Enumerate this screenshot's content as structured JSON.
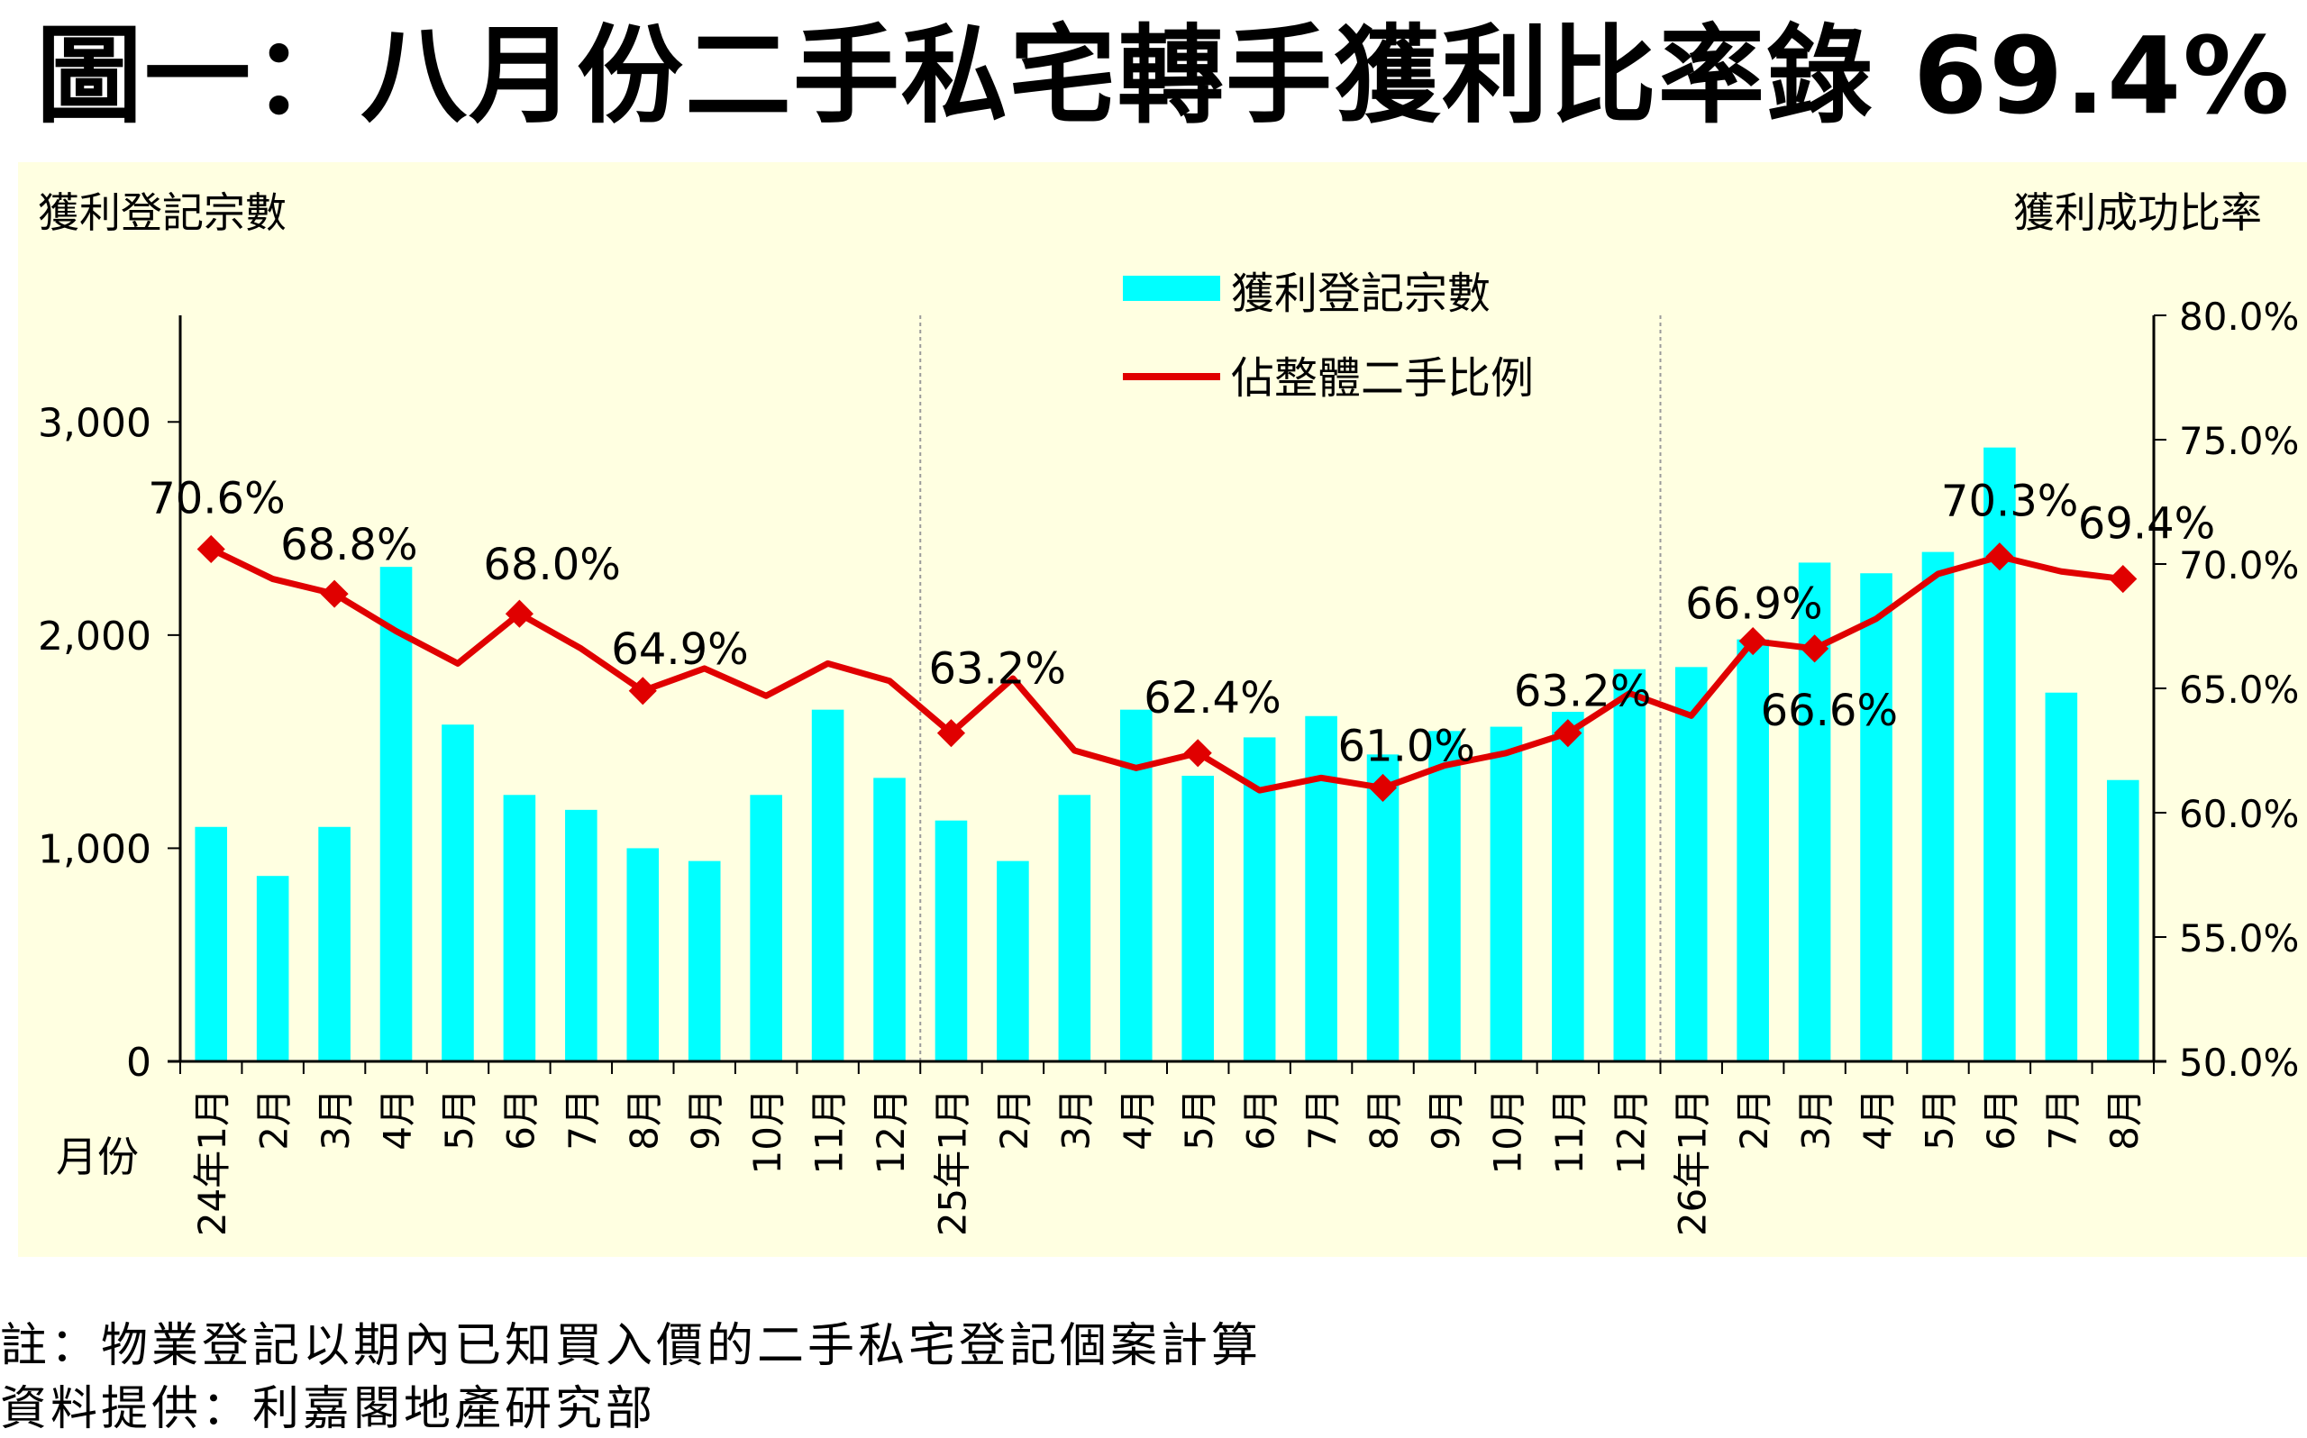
{
  "title": "圖一：八月份二手私宅轉手獲利比率錄 69.4%",
  "notes": {
    "line1": "註：物業登記以期內已知買入價的二手私宅登記個案計算",
    "line2": "資料提供：利嘉閣地產研究部"
  },
  "colors": {
    "bars": "#00ffff",
    "line": "#e00000",
    "panel": "#ffffe1"
  },
  "chart_data": {
    "type": "bar",
    "title": "圖一：八月份二手私宅轉手獲利比率錄 69.4%",
    "xlabel": "月份",
    "ylabel": "獲利登記宗數",
    "y2label": "獲利成功比率",
    "ylim": [
      0,
      3500
    ],
    "y2lim": [
      50.0,
      80.0
    ],
    "yticks": [
      "0",
      "1,000",
      "2,000",
      "3,000"
    ],
    "yticks_values": [
      0,
      1000,
      2000,
      3000
    ],
    "y2ticks": [
      "50.0%",
      "55.0%",
      "60.0%",
      "65.0%",
      "70.0%",
      "75.0%",
      "80.0%"
    ],
    "y2ticks_values": [
      50,
      55,
      60,
      65,
      70,
      75,
      80
    ],
    "categories": [
      "24年1月",
      "2月",
      "3月",
      "4月",
      "5月",
      "6月",
      "7月",
      "8月",
      "9月",
      "10月",
      "11月",
      "12月",
      "25年1月",
      "2月",
      "3月",
      "4月",
      "5月",
      "6月",
      "7月",
      "8月",
      "9月",
      "10月",
      "11月",
      "12月",
      "26年1月",
      "2月",
      "3月",
      "4月",
      "5月",
      "6月",
      "7月",
      "8月"
    ],
    "year_breaks": [
      12,
      24
    ],
    "grid": false,
    "legend": "top-center",
    "series": [
      {
        "name": "獲利登記宗數",
        "axis": "left",
        "type": "bar",
        "values": [
          1100,
          870,
          1100,
          2320,
          1580,
          1250,
          1180,
          1000,
          940,
          1250,
          1650,
          1330,
          1130,
          940,
          1250,
          1650,
          1340,
          1520,
          1620,
          1440,
          1550,
          1570,
          1640,
          1840,
          1850,
          1980,
          2340,
          2290,
          2390,
          2880,
          1730,
          1320
        ]
      },
      {
        "name": "佔整體二手比例",
        "axis": "right",
        "type": "line",
        "values": [
          70.6,
          69.4,
          68.8,
          67.3,
          66.0,
          68.0,
          66.6,
          64.9,
          65.8,
          64.7,
          66.0,
          65.3,
          63.2,
          65.4,
          62.5,
          61.8,
          62.4,
          60.9,
          61.4,
          61.0,
          61.9,
          62.4,
          63.2,
          64.8,
          63.9,
          66.9,
          66.6,
          67.8,
          69.6,
          70.3,
          69.7,
          69.4
        ]
      }
    ],
    "data_labels": [
      {
        "index": 0,
        "text": "70.6%"
      },
      {
        "index": 2,
        "text": "68.8%"
      },
      {
        "index": 5,
        "text": "68.0%"
      },
      {
        "index": 7,
        "text": "64.9%"
      },
      {
        "index": 12,
        "text": "63.2%"
      },
      {
        "index": 16,
        "text": "62.4%"
      },
      {
        "index": 19,
        "text": "61.0%"
      },
      {
        "index": 22,
        "text": "63.2%"
      },
      {
        "index": 25,
        "text": "66.9%"
      },
      {
        "index": 26,
        "text": "66.6%"
      },
      {
        "index": 29,
        "text": "70.3%"
      },
      {
        "index": 31,
        "text": "69.4%"
      }
    ],
    "marker_indices": [
      0,
      2,
      5,
      7,
      12,
      16,
      19,
      22,
      25,
      26,
      29,
      31
    ]
  }
}
